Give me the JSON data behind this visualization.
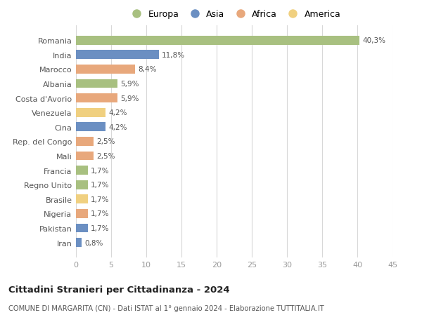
{
  "countries": [
    "Romania",
    "India",
    "Marocco",
    "Albania",
    "Costa d'Avorio",
    "Venezuela",
    "Cina",
    "Rep. del Congo",
    "Mali",
    "Francia",
    "Regno Unito",
    "Brasile",
    "Nigeria",
    "Pakistan",
    "Iran"
  ],
  "values": [
    40.3,
    11.8,
    8.4,
    5.9,
    5.9,
    4.2,
    4.2,
    2.5,
    2.5,
    1.7,
    1.7,
    1.7,
    1.7,
    1.7,
    0.8
  ],
  "labels": [
    "40,3%",
    "11,8%",
    "8,4%",
    "5,9%",
    "5,9%",
    "4,2%",
    "4,2%",
    "2,5%",
    "2,5%",
    "1,7%",
    "1,7%",
    "1,7%",
    "1,7%",
    "1,7%",
    "0,8%"
  ],
  "continents": [
    "Europa",
    "Asia",
    "Africa",
    "Europa",
    "Africa",
    "America",
    "Asia",
    "Africa",
    "Africa",
    "Europa",
    "Europa",
    "America",
    "Africa",
    "Asia",
    "Asia"
  ],
  "continent_colors": {
    "Europa": "#a8c080",
    "Asia": "#6b8fc2",
    "Africa": "#e8a87c",
    "America": "#f0d080"
  },
  "legend_order": [
    "Europa",
    "Asia",
    "Africa",
    "America"
  ],
  "title": "Cittadini Stranieri per Cittadinanza - 2024",
  "subtitle": "COMUNE DI MARGARITA (CN) - Dati ISTAT al 1° gennaio 2024 - Elaborazione TUTTITALIA.IT",
  "xlim": [
    0,
    45
  ],
  "xticks": [
    0,
    5,
    10,
    15,
    20,
    25,
    30,
    35,
    40,
    45
  ],
  "bg_color": "#ffffff",
  "grid_color": "#d8d8d8",
  "bar_height": 0.62
}
